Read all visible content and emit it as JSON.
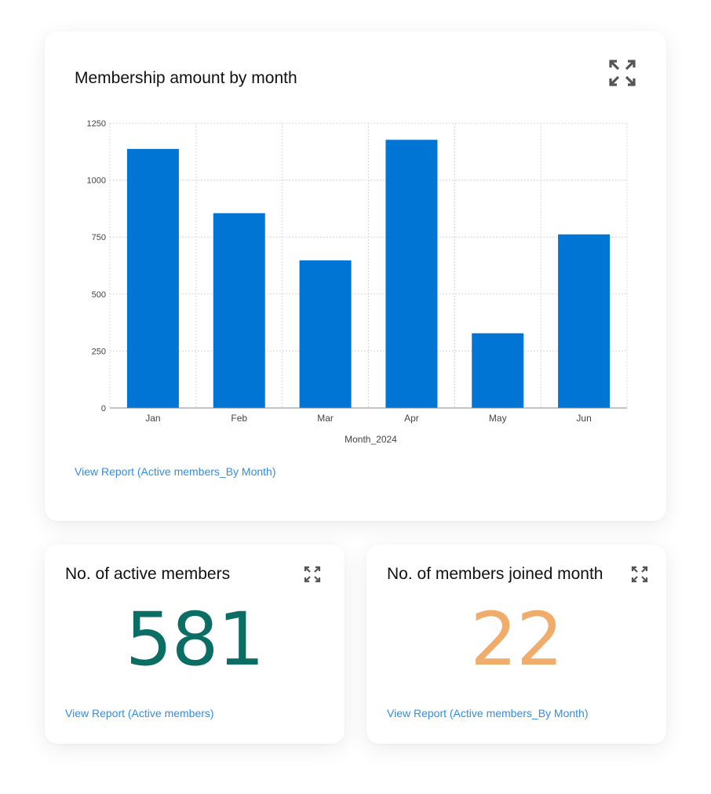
{
  "main_card": {
    "title": "Membership amount by month",
    "expand_icon": "expand-icon",
    "link": "View Report (Active members_By Month)"
  },
  "chart_data": {
    "type": "bar",
    "title": "Membership amount by month",
    "categories": [
      "Jan",
      "Feb",
      "Mar",
      "Apr",
      "May",
      "Jun"
    ],
    "values": [
      1137,
      855,
      648,
      1177,
      328,
      762
    ],
    "xlabel": "Month_2024",
    "ylabel": "",
    "ylim": [
      0,
      1250
    ],
    "yticks": [
      0,
      250,
      500,
      750,
      1000,
      1250
    ],
    "grid": true,
    "legend": "none",
    "bar_color": "#0075d3"
  },
  "active_members_card": {
    "title": "No. of active members",
    "value": "581",
    "value_color": "#0b6e65",
    "expand_icon": "expand-icon",
    "link": "View Report (Active members)"
  },
  "joined_card": {
    "title": "No. of members joined month",
    "value": "22",
    "value_color": "#f0ac6a",
    "expand_icon": "expand-icon",
    "link": "View Report (Active members_By Month)"
  }
}
